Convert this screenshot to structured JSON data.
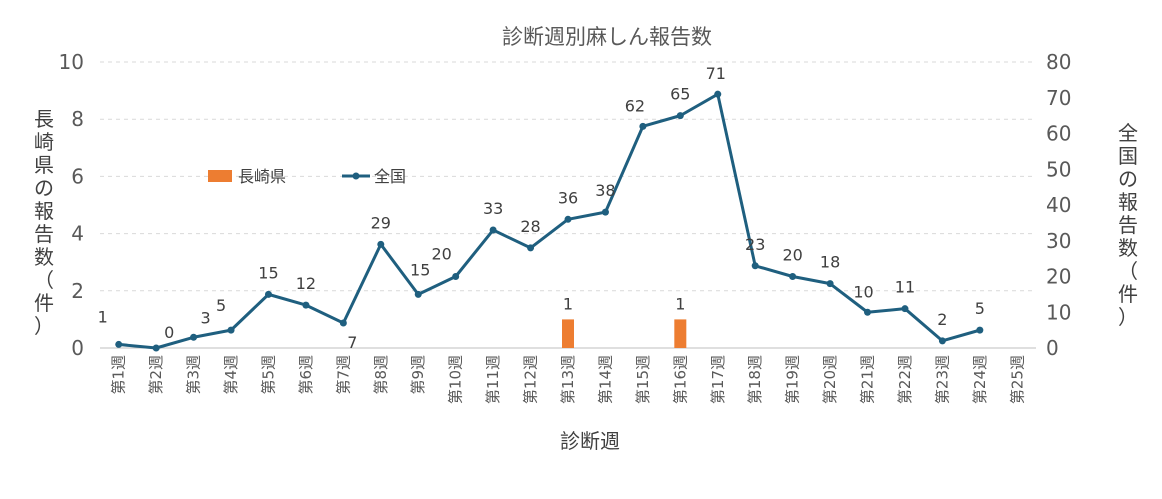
{
  "chart_data": {
    "type": "bar+line",
    "title": "診断週別麻しん報告数",
    "xlabel": "診断週",
    "ylabel_left": "長崎県の報告数（件）",
    "ylabel_right": "全国の報告数（件）",
    "categories": [
      "第1週",
      "第2週",
      "第3週",
      "第4週",
      "第5週",
      "第6週",
      "第7週",
      "第8週",
      "第9週",
      "第10週",
      "第11週",
      "第12週",
      "第13週",
      "第14週",
      "第15週",
      "第16週",
      "第17週",
      "第18週",
      "第19週",
      "第20週",
      "第21週",
      "第22週",
      "第23週",
      "第24週",
      "第25週"
    ],
    "series": [
      {
        "name": "長崎県",
        "type": "bar",
        "axis": "left",
        "color": "#ed7d31",
        "values": [
          0,
          0,
          0,
          0,
          0,
          0,
          0,
          0,
          0,
          0,
          0,
          0,
          1,
          0,
          0,
          1,
          0,
          0,
          0,
          0,
          0,
          0,
          0,
          0,
          0
        ],
        "data_labels": [
          "",
          "",
          "",
          "",
          "",
          "",
          "",
          "",
          "",
          "",
          "",
          "",
          "1",
          "",
          "",
          "1",
          "",
          "",
          "",
          "",
          "",
          "",
          "",
          "",
          ""
        ]
      },
      {
        "name": "全国",
        "type": "line",
        "axis": "right",
        "color": "#1f5f7f",
        "values": [
          1,
          0,
          3,
          5,
          15,
          12,
          7,
          29,
          15,
          20,
          33,
          28,
          36,
          38,
          62,
          65,
          71,
          23,
          20,
          18,
          10,
          11,
          2,
          5,
          null
        ],
        "data_labels": [
          "1",
          "0",
          "3",
          "5",
          "15",
          "12",
          "7",
          "29",
          "15",
          "20",
          "33",
          "28",
          "36",
          "38",
          "62",
          "65",
          "71",
          "23",
          "20",
          "18",
          "10",
          "11",
          "2",
          "5",
          ""
        ]
      }
    ],
    "ylim_left": [
      0,
      10
    ],
    "yticks_left": [
      "0",
      "2",
      "4",
      "6",
      "8",
      "10"
    ],
    "ylim_right": [
      0,
      80
    ],
    "yticks_right": [
      "0",
      "10",
      "20",
      "30",
      "40",
      "50",
      "60",
      "70",
      "80"
    ],
    "grid": true,
    "legend_placement": "upper-left inside plot"
  }
}
